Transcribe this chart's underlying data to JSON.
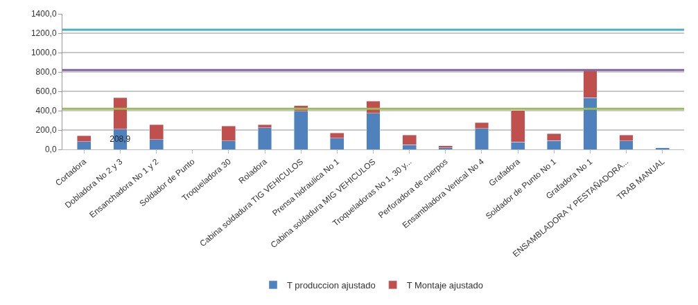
{
  "chart_data": {
    "type": "bar",
    "stacked": true,
    "categories": [
      "Cortadora",
      "Dobladora No 2 y 3",
      "Ensanchadora No 1 y 2",
      "Soldador de Punto",
      "Troqueladora 30",
      "Roladora",
      "Cabina soldadura TIG VEHICULOS",
      "Prensa hidraulica No 1",
      "Cabina soldadura MIG VEHICULOS",
      "Troqueladoras No 1, 30 y...",
      "Perforadora de cuerpos",
      "Ensambladora Vertical No 4",
      "Grafadora",
      "Soldador de Punto No 1",
      "Grafadora No 1",
      "ENSAMBLADORA Y PESTAÑADORA...",
      "TRAB MANUAL"
    ],
    "series": [
      {
        "name": "T produccion ajustado",
        "color": "#4f81bd",
        "values": [
          80,
          208.9,
          103,
          null,
          88,
          225,
          396,
          117,
          374,
          49,
          17,
          215,
          78,
          90,
          533,
          86,
          15
        ],
        "value_labels": [
          null,
          "208,9",
          null,
          null,
          null,
          null,
          null,
          null,
          null,
          null,
          null,
          null,
          null,
          null,
          null,
          null,
          null
        ]
      },
      {
        "name": "T Montaje ajustado",
        "color": "#c0504d",
        "values": [
          61,
          326,
          154,
          null,
          152,
          32,
          56,
          54,
          124,
          98,
          20,
          61,
          325,
          74,
          281,
          61,
          null
        ]
      }
    ],
    "ylim": [
      0,
      1400
    ],
    "yticks": [
      {
        "value": 0,
        "label": "0,0"
      },
      {
        "value": 200,
        "label": "200,0"
      },
      {
        "value": 400,
        "label": "400,0"
      },
      {
        "value": 600,
        "label": "600,0"
      },
      {
        "value": 800,
        "label": "800,0"
      },
      {
        "value": 1000,
        "label": "1000,0"
      },
      {
        "value": 1200,
        "label": "1200,0"
      },
      {
        "value": 1400,
        "label": "1400,0"
      }
    ],
    "ref_lines": [
      {
        "axis": "y",
        "value": 1235,
        "color": "#4bacc6"
      },
      {
        "axis": "y",
        "value": 820,
        "color": "#8064a2"
      },
      {
        "axis": "y",
        "value": 420,
        "color": "#9bbb59"
      }
    ],
    "grid": "y",
    "legend": "bottom"
  }
}
